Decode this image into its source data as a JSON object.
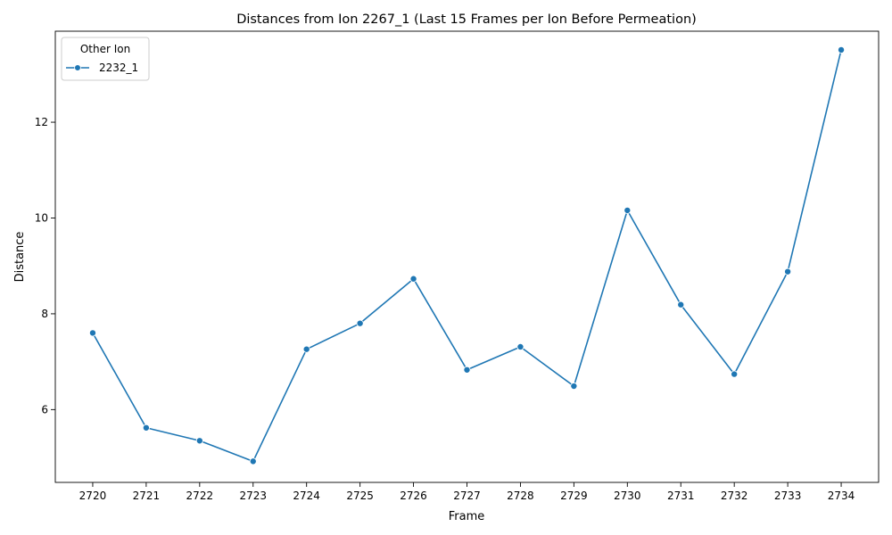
{
  "chart_data": {
    "type": "line",
    "title": "Distances from Ion 2267_1 (Last 15 Frames per Ion Before Permeation)",
    "xlabel": "Frame",
    "ylabel": "Distance",
    "x": [
      2720,
      2721,
      2722,
      2723,
      2724,
      2725,
      2726,
      2727,
      2728,
      2729,
      2730,
      2731,
      2732,
      2733,
      2734
    ],
    "xticks": [
      "2720",
      "2721",
      "2722",
      "2723",
      "2724",
      "2725",
      "2726",
      "2727",
      "2728",
      "2729",
      "2730",
      "2731",
      "2732",
      "2733",
      "2734"
    ],
    "yticks": [
      6,
      8,
      10,
      12
    ],
    "ylim": [
      4.48,
      13.9
    ],
    "series": [
      {
        "name": "2232_1",
        "color": "#1f77b4",
        "marker": "circle",
        "values": [
          7.6,
          5.62,
          5.35,
          4.92,
          7.26,
          7.8,
          8.73,
          6.83,
          7.31,
          6.49,
          10.16,
          8.19,
          6.74,
          8.88,
          13.51
        ]
      }
    ],
    "legend": {
      "title": "Other Ion",
      "placement": "top-left"
    },
    "grid": false
  }
}
